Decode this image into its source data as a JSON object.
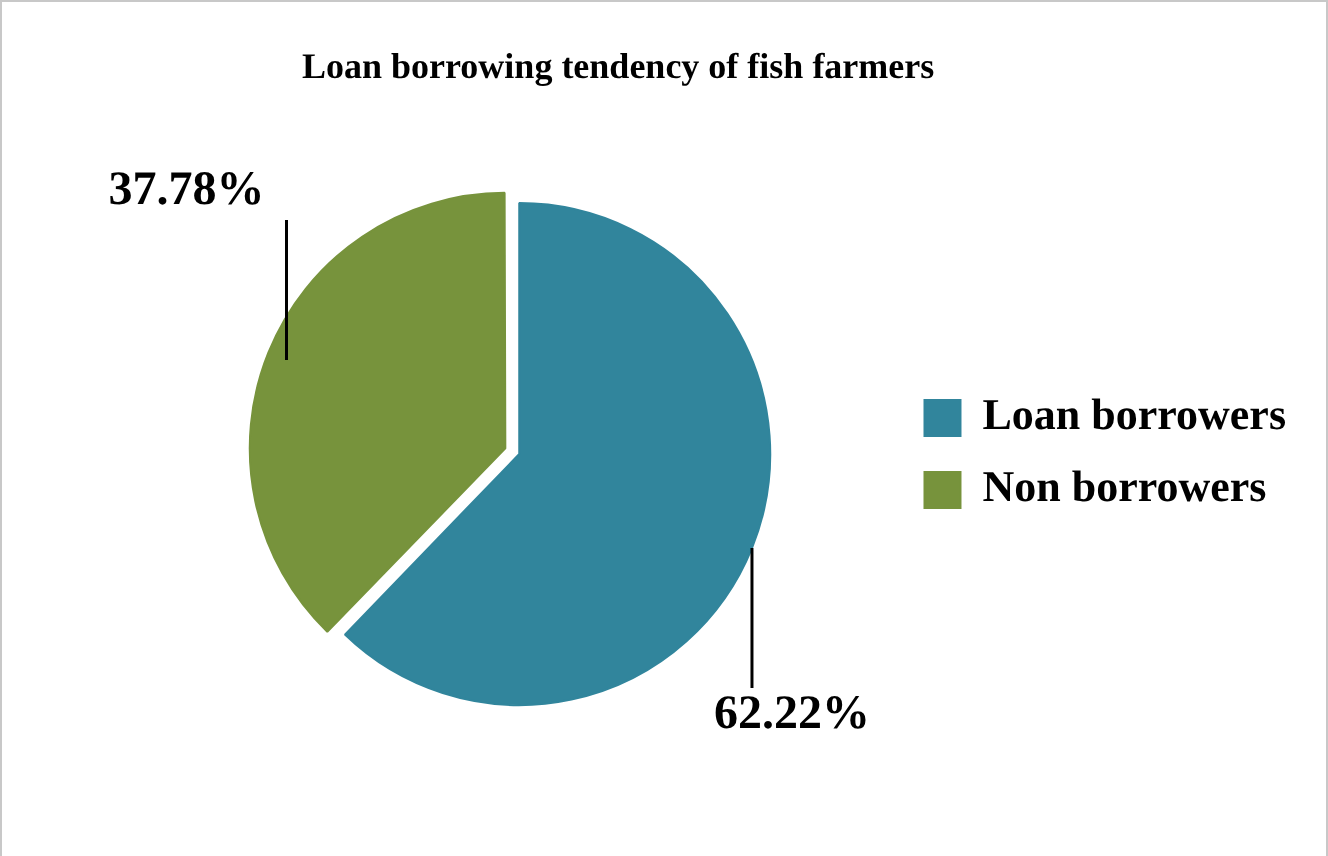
{
  "chart_data": {
    "type": "pie",
    "title": "Loan borrowing tendency of fish farmers",
    "categories": [
      "Loan borrowers",
      "Non borrowers"
    ],
    "values": [
      62.22,
      37.78
    ],
    "colors": [
      "#31859c",
      "#77933c"
    ],
    "value_labels": [
      "62.22%",
      "37.78%"
    ],
    "legend": "right"
  }
}
